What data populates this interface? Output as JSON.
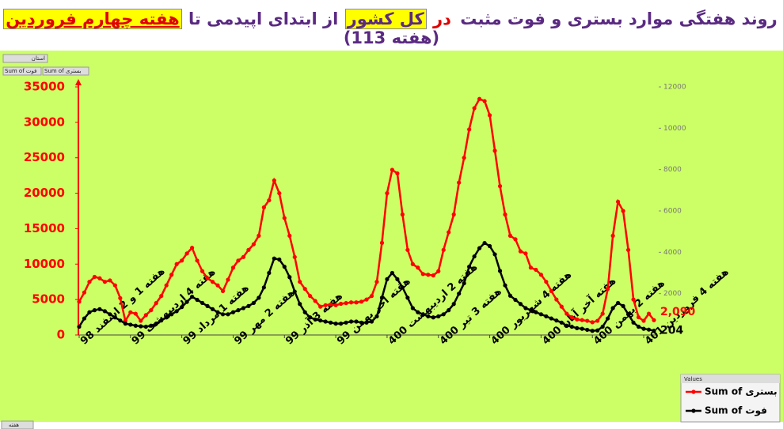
{
  "chart_data": {
    "type": "line",
    "title_parts": [
      {
        "text": "روند هفتگی موارد بستری و فوت مثبت",
        "color": "#5a2a82"
      },
      {
        "text": "در",
        "color": "#e00000"
      },
      {
        "text": "کل کشور",
        "color": "#5a2a82",
        "highlight": "#ffff00"
      },
      {
        "text": "از ابتدای اپیدمی تا",
        "color": "#5a2a82"
      },
      {
        "text": "هفته چهارم فروردین",
        "color": "#e00000",
        "highlight": "#ffff00",
        "underline": true
      },
      {
        "text": "(هفته 113)",
        "color": "#5a2a82"
      }
    ],
    "categories": [
      "هفته 1 و 2 اسفند 98",
      null,
      null,
      null,
      null,
      null,
      null,
      null,
      null,
      null,
      "هفته 4 اردیبهشت 99",
      null,
      null,
      null,
      null,
      null,
      null,
      null,
      null,
      null,
      "هفته 1 مرداد 99",
      null,
      null,
      null,
      null,
      null,
      null,
      null,
      null,
      null,
      "هفته 2 مهر 99",
      null,
      null,
      null,
      null,
      null,
      null,
      null,
      null,
      null,
      "هفته 3 آذر 99",
      null,
      null,
      null,
      null,
      null,
      null,
      null,
      null,
      null,
      "هفته آخر بهمن 99",
      null,
      null,
      null,
      null,
      null,
      null,
      null,
      null,
      null,
      "هفته 2 اردیبهشت 400",
      null,
      null,
      null,
      null,
      null,
      null,
      null,
      null,
      null,
      "هفته 3 تیر 400",
      null,
      null,
      null,
      null,
      null,
      null,
      null,
      null,
      null,
      "هفته 4 شهریور 400",
      null,
      null,
      null,
      null,
      null,
      null,
      null,
      null,
      null,
      "هفته آخر آبان 400",
      null,
      null,
      null,
      null,
      null,
      null,
      null,
      null,
      null,
      "هفته 2 بهمن 400",
      null,
      null,
      null,
      null,
      null,
      null,
      null,
      null,
      null,
      "هفته 4 فروردین 401",
      null,
      null
    ],
    "series": [
      {
        "name": "Sum of بستری",
        "color": "#ff0000",
        "axis": "y",
        "values": [
          4700,
          6000,
          7500,
          8200,
          8000,
          7500,
          7700,
          7000,
          5200,
          2000,
          3200,
          3000,
          2000,
          2800,
          3500,
          4500,
          5500,
          7000,
          8500,
          10000,
          10500,
          11500,
          12300,
          10500,
          9000,
          8000,
          7500,
          7000,
          6200,
          7800,
          9500,
          10500,
          11000,
          12000,
          12800,
          14000,
          18000,
          19000,
          21800,
          20000,
          16500,
          14000,
          11000,
          7500,
          6500,
          5500,
          4800,
          4000,
          4200,
          4300,
          4200,
          4400,
          4500,
          4600,
          4600,
          4700,
          5000,
          5500,
          7500,
          13000,
          20000,
          23300,
          22800,
          17000,
          12000,
          10000,
          9500,
          8600,
          8500,
          8400,
          9000,
          12000,
          14500,
          17000,
          21500,
          25000,
          29000,
          32000,
          33300,
          33000,
          31000,
          26000,
          21000,
          17000,
          14000,
          13500,
          11800,
          11500,
          9500,
          9200,
          8500,
          7500,
          6200,
          5000,
          4000,
          3000,
          2500,
          2200,
          2100,
          2000,
          1800,
          2000,
          3000,
          6500,
          14000,
          18800,
          17500,
          12000,
          5000,
          2500,
          2000,
          3000,
          2090
        ],
        "value_labels": [
          null,
          null,
          null,
          null,
          null,
          null,
          null,
          null,
          null,
          null,
          null,
          null,
          null,
          null,
          null,
          null,
          null,
          null,
          null,
          null,
          null,
          null,
          null,
          null,
          null,
          null,
          null,
          null,
          null,
          null,
          null,
          null,
          null,
          null,
          null,
          null,
          null,
          null,
          null,
          null,
          null,
          null,
          null,
          null,
          null,
          null,
          null,
          null,
          null,
          null,
          null,
          null,
          null,
          null,
          null,
          null,
          null,
          null,
          null,
          null,
          null,
          null,
          null,
          null,
          null,
          null,
          null,
          null,
          null,
          null,
          null,
          null,
          null,
          null,
          null,
          null,
          null,
          null,
          null,
          null,
          null,
          null,
          null,
          null,
          null,
          null,
          null,
          null,
          null,
          null,
          null,
          null,
          null,
          null,
          null,
          null,
          null,
          null,
          null,
          null,
          null,
          null,
          null,
          null,
          null,
          null,
          null,
          null,
          null,
          null,
          null,
          null,
          "2,090"
        ]
      },
      {
        "name": "Sum of فوت",
        "color": "#000000",
        "axis": "y2",
        "values": [
          400,
          800,
          1100,
          1200,
          1250,
          1150,
          1000,
          850,
          700,
          550,
          500,
          450,
          420,
          400,
          450,
          550,
          700,
          850,
          1000,
          1150,
          1350,
          1600,
          1850,
          1700,
          1550,
          1400,
          1250,
          1100,
          1000,
          1000,
          1100,
          1200,
          1300,
          1400,
          1550,
          1800,
          2300,
          3000,
          3700,
          3650,
          3300,
          2800,
          2100,
          1500,
          1100,
          850,
          750,
          700,
          650,
          600,
          550,
          550,
          600,
          650,
          650,
          600,
          600,
          650,
          900,
          1800,
          2700,
          3000,
          2700,
          2300,
          1800,
          1300,
          1100,
          1000,
          900,
          850,
          900,
          1000,
          1200,
          1500,
          2000,
          2500,
          3300,
          3800,
          4200,
          4450,
          4300,
          3900,
          3100,
          2400,
          1900,
          1700,
          1500,
          1300,
          1200,
          1100,
          1000,
          900,
          800,
          700,
          600,
          450,
          400,
          330,
          300,
          250,
          200,
          220,
          400,
          800,
          1300,
          1550,
          1400,
          1000,
          600,
          400,
          300,
          260,
          204
        ]
      }
    ],
    "ylim": [
      0,
      35000
    ],
    "yticks": [
      0,
      5000,
      10000,
      15000,
      20000,
      25000,
      30000,
      35000
    ],
    "y2lim": [
      0,
      12000
    ],
    "y2ticks": [
      2000,
      4000,
      6000,
      8000,
      10000,
      12000
    ],
    "legend_title": "Values",
    "legend": "bottom-right",
    "grid": false,
    "background": "#ccff66"
  },
  "ui": {
    "filter_button": "استان",
    "value_buttons": [
      "Sum of فوت",
      "Sum of بستری"
    ],
    "axis_button": "هفته"
  }
}
